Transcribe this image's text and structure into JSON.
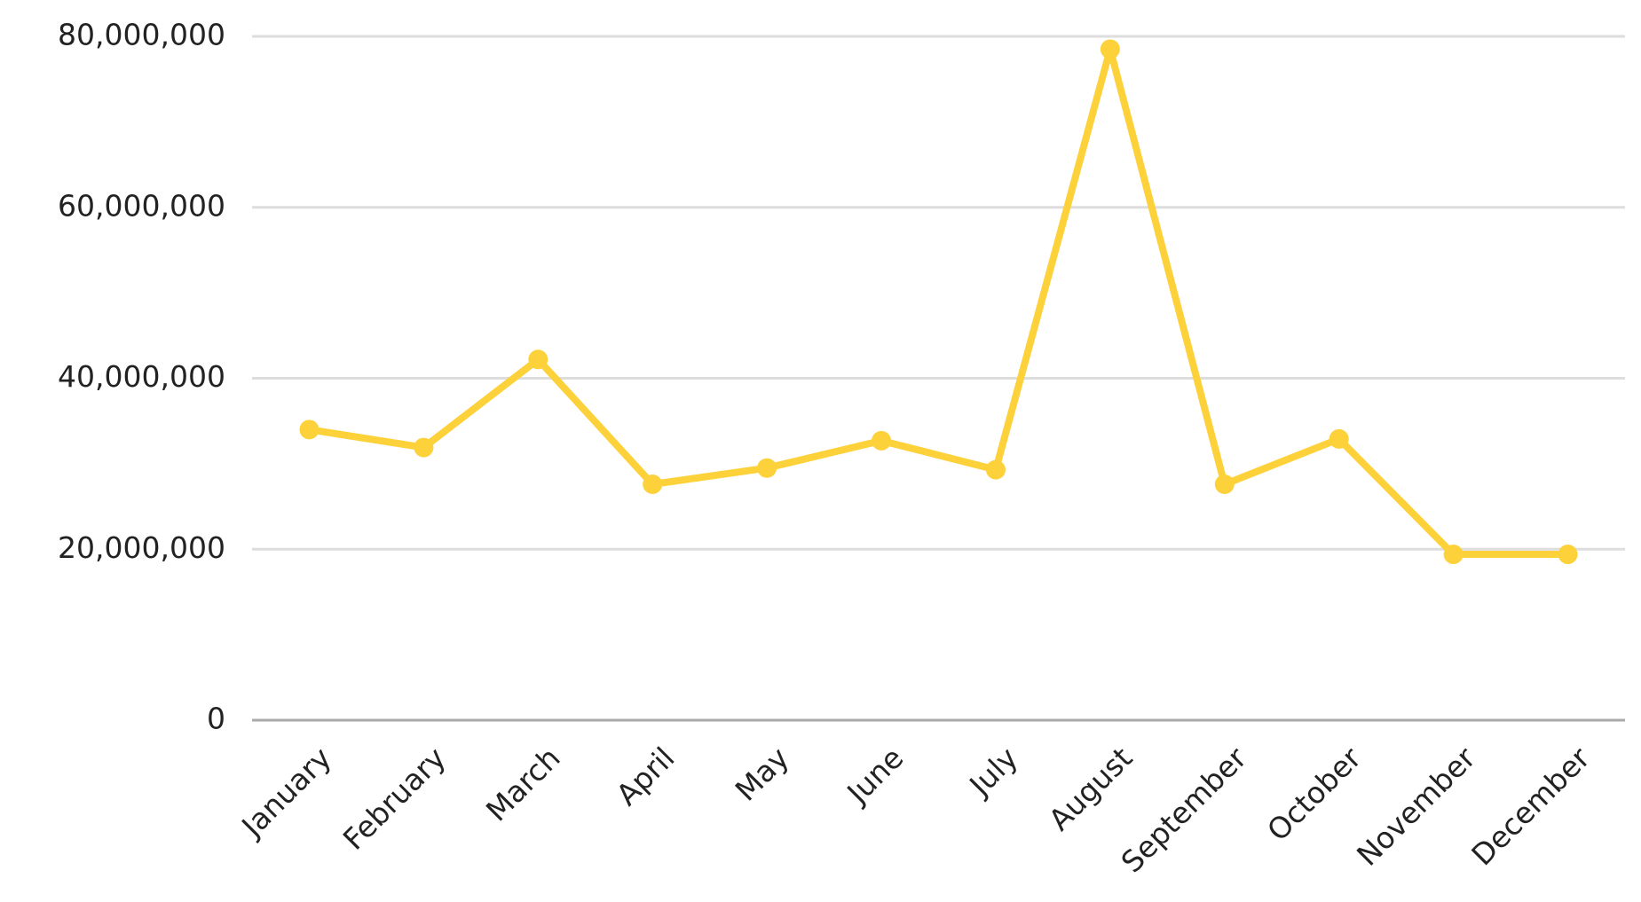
{
  "chart_data": {
    "type": "line",
    "categories": [
      "January",
      "February",
      "March",
      "April",
      "May",
      "June",
      "July",
      "August",
      "September",
      "October",
      "November",
      "December"
    ],
    "values": [
      34000000,
      31900000,
      42200000,
      27600000,
      29500000,
      32700000,
      29300000,
      78500000,
      27600000,
      32900000,
      19400000,
      19400000
    ],
    "color": "#fdd13a",
    "ylim": [
      0,
      80000000
    ],
    "yticks": [
      0,
      {
        "value": 20000000,
        "label": "20,000,000"
      },
      {
        "value": 40000000,
        "label": "40,000,000"
      },
      {
        "value": 60000000,
        "label": "60,000,000"
      },
      {
        "value": 80000000,
        "label": "80,000,000"
      }
    ],
    "grid": true
  }
}
